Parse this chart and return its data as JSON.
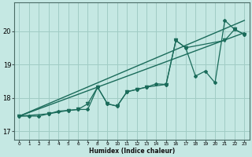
{
  "xlabel": "Humidex (Indice chaleur)",
  "xlim": [
    -0.5,
    23.5
  ],
  "ylim": [
    16.75,
    20.85
  ],
  "bg_color": "#c5e8e3",
  "grid_color": "#a0ccc5",
  "line_color": "#1a6b5a",
  "xticks": [
    0,
    1,
    2,
    3,
    4,
    5,
    6,
    7,
    8,
    9,
    10,
    11,
    12,
    13,
    14,
    15,
    16,
    17,
    18,
    19,
    20,
    21,
    22,
    23
  ],
  "yticks": [
    17,
    18,
    19,
    20
  ],
  "zigzag_x": [
    0,
    1,
    2,
    3,
    4,
    5,
    6,
    7,
    8,
    9,
    10,
    11,
    12,
    13,
    14,
    15,
    16,
    17,
    18,
    19,
    20,
    21,
    22,
    23
  ],
  "zigzag_y": [
    17.45,
    17.45,
    17.45,
    17.52,
    17.6,
    17.62,
    17.65,
    17.65,
    18.32,
    17.82,
    17.75,
    18.18,
    18.25,
    18.32,
    18.42,
    18.4,
    19.72,
    19.5,
    18.65,
    18.8,
    18.45,
    20.32,
    20.05,
    19.9
  ],
  "triangle_x": [
    0,
    3,
    5,
    6,
    7,
    8,
    9,
    10,
    11,
    12,
    13,
    15,
    16,
    17,
    21,
    22,
    23
  ],
  "triangle_y": [
    17.45,
    17.52,
    17.62,
    17.65,
    17.82,
    18.32,
    17.82,
    17.75,
    18.18,
    18.25,
    18.32,
    18.4,
    19.72,
    19.5,
    19.72,
    20.05,
    19.9
  ],
  "trend1_x": [
    0,
    23
  ],
  "trend1_y": [
    17.45,
    19.95
  ],
  "trend2_x": [
    0,
    23
  ],
  "trend2_y": [
    17.45,
    20.32
  ]
}
